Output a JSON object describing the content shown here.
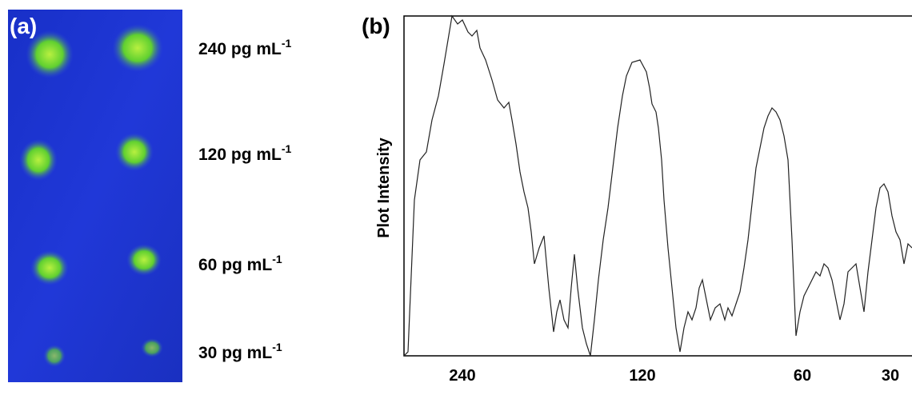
{
  "panel_a": {
    "label": "(a)",
    "rows": [
      {
        "text": "240 pg mL",
        "sup": "-1"
      },
      {
        "text": "120 pg mL",
        "sup": "-1"
      },
      {
        "text": "60 pg mL",
        "sup": "-1"
      },
      {
        "text": "30 pg mL",
        "sup": "-1"
      }
    ]
  },
  "panel_b": {
    "label": "(b)",
    "y_label": "Plot Intensity",
    "x_labels": [
      "240",
      "120",
      "60",
      "30"
    ]
  }
}
